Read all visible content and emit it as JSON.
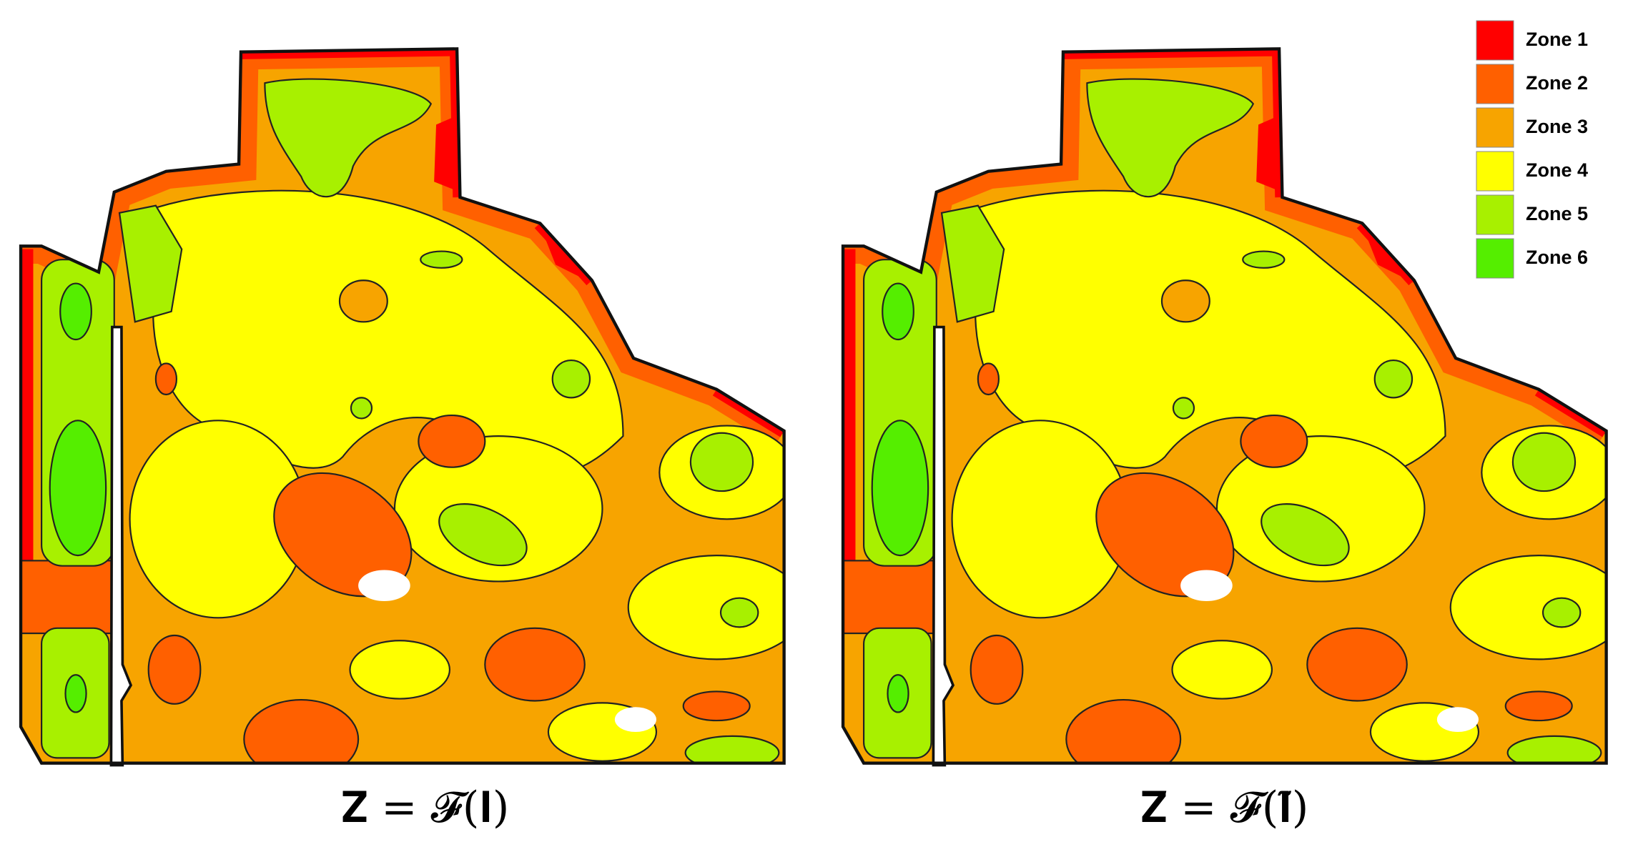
{
  "legend": [
    {
      "label": "Zone 1",
      "color": "#ff0000"
    },
    {
      "label": "Zone 2",
      "color": "#ff6000"
    },
    {
      "label": "Zone 3",
      "color": "#f7a400"
    },
    {
      "label": "Zone 4",
      "color": "#ffff00"
    },
    {
      "label": "Zone 5",
      "color": "#a8f000"
    },
    {
      "label": "Zone 6",
      "color": "#55ee00"
    }
  ],
  "panels": [
    {
      "caption": "𝐙 = 𝓕(𝐈)"
    },
    {
      "caption": "𝐙̃ = 𝓕(𝐈̃)"
    }
  ]
}
